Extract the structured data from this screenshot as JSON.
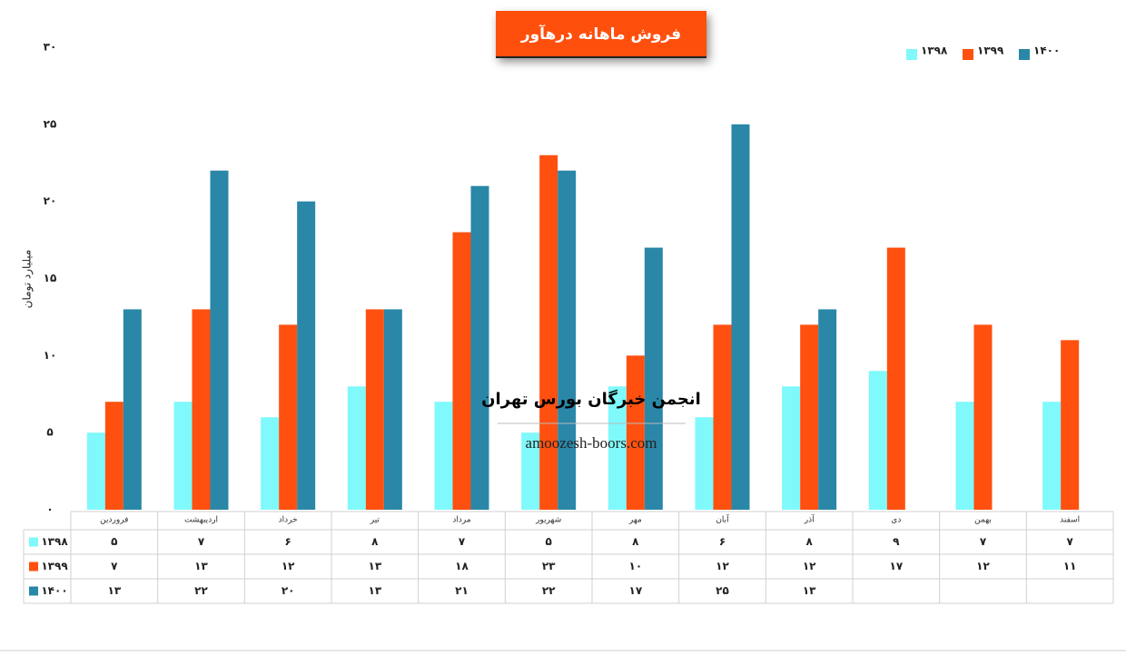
{
  "chart_data": {
    "type": "bar",
    "title": "فروش ماهانه درهآور",
    "y_label": "میلیارد تومان",
    "annotations": [
      "انجمن خبرگان بورس تهران",
      "amoozesh-boors.com"
    ],
    "categories": [
      "فروردین",
      "اردیبهشت",
      "خرداد",
      "تیر",
      "مرداد",
      "شهریور",
      "مهر",
      "آبان",
      "آذر",
      "دی",
      "بهمن",
      "اسفند"
    ],
    "series": [
      {
        "name": "۱۳۹۸",
        "color": "#7ff9fb",
        "values": [
          5,
          7,
          6,
          8,
          7,
          5,
          8,
          6,
          8,
          9,
          7,
          7
        ],
        "value_labels": [
          "۵",
          "۷",
          "۶",
          "۸",
          "۷",
          "۵",
          "۸",
          "۶",
          "۸",
          "۹",
          "۷",
          "۷"
        ]
      },
      {
        "name": "۱۳۹۹",
        "color": "#ff5010",
        "values": [
          7,
          13,
          12,
          13,
          18,
          23,
          10,
          12,
          12,
          17,
          12,
          11
        ],
        "value_labels": [
          "۷",
          "۱۳",
          "۱۲",
          "۱۳",
          "۱۸",
          "۲۳",
          "۱۰",
          "۱۲",
          "۱۲",
          "۱۷",
          "۱۲",
          "۱۱"
        ]
      },
      {
        "name": "۱۴۰۰",
        "color": "#2a87a8",
        "values": [
          13,
          22,
          20,
          13,
          21,
          22,
          17,
          25,
          13,
          null,
          null,
          null
        ],
        "value_labels": [
          "۱۳",
          "۲۲",
          "۲۰",
          "۱۳",
          "۲۱",
          "۲۲",
          "۱۷",
          "۲۵",
          "۱۳",
          null,
          null,
          null
        ]
      }
    ],
    "ylim": [
      0,
      30
    ],
    "yticks": [
      {
        "value": 0,
        "label": "۰"
      },
      {
        "value": 5,
        "label": "۵"
      },
      {
        "value": 10,
        "label": "۱۰"
      },
      {
        "value": 15,
        "label": "۱۵"
      },
      {
        "value": 20,
        "label": "۲۰"
      },
      {
        "value": 25,
        "label": "۲۵"
      },
      {
        "value": 30,
        "label": "۳۰"
      }
    ],
    "grid": false,
    "legend": "top-right"
  }
}
